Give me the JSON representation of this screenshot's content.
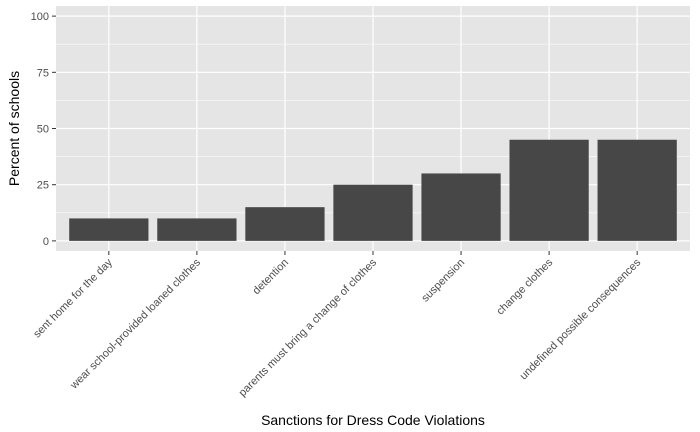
{
  "chart_data": {
    "type": "bar",
    "categories": [
      "sent home for the day",
      "wear school-provided loaned clothes",
      "detention",
      "parents must bring a change of clothes",
      "suspension",
      "change clothes",
      "undefined possible consequences"
    ],
    "values": [
      10,
      10,
      15,
      25,
      30,
      45,
      45
    ],
    "xlabel": "Sanctions for Dress Code Violations",
    "ylabel": "Percent of schools",
    "ylim": [
      0,
      100
    ],
    "yticks": [
      0,
      25,
      50,
      75,
      100
    ],
    "grid": true,
    "colors": {
      "bar": "#474747",
      "panel": "#e5e5e5",
      "grid_major": "#ffffff",
      "tick_text": "#4d4d4d",
      "axis_title": "#000000"
    }
  }
}
